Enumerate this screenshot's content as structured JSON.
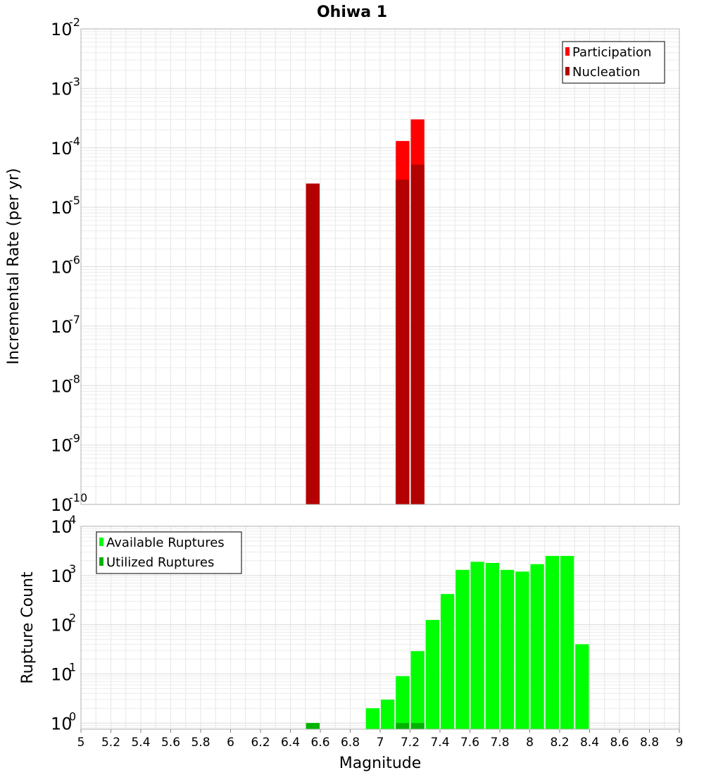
{
  "chart_data": [
    {
      "type": "bar",
      "title": "Ohiwa 1",
      "xlabel": "Magnitude",
      "ylabel": "Incremental Rate (per yr)",
      "yscale": "log",
      "xlim": [
        5,
        9
      ],
      "ylim": [
        1e-10,
        0.01
      ],
      "y_tick_bases": [
        "10",
        "10",
        "10",
        "10",
        "10",
        "10",
        "10",
        "10",
        "10"
      ],
      "y_tick_exponents": [
        "-10",
        "-9",
        "-8",
        "-7",
        "-6",
        "-5",
        "-4",
        "-3",
        "-2"
      ],
      "bin_width": 0.1,
      "grid": true,
      "legend_position": "top-right",
      "series": [
        {
          "name": "Participation",
          "color": "#ff0000",
          "x": [
            6.55,
            7.15,
            7.25
          ],
          "values": [
            2.5e-05,
            0.00013,
            0.0003
          ]
        },
        {
          "name": "Nucleation",
          "color": "#b30000",
          "x": [
            6.55,
            7.15,
            7.25
          ],
          "values": [
            2.5e-05,
            2.9e-05,
            5.2e-05
          ]
        }
      ]
    },
    {
      "type": "bar",
      "xlabel": "Magnitude",
      "ylabel": "Rupture Count",
      "yscale": "log",
      "xlim": [
        5,
        9
      ],
      "ylim": [
        0.75,
        10000
      ],
      "x_tick_labels": [
        "5",
        "5.2",
        "5.4",
        "5.6",
        "5.8",
        "6",
        "6.2",
        "6.4",
        "6.6",
        "6.8",
        "7",
        "7.2",
        "7.4",
        "7.6",
        "7.8",
        "8",
        "8.2",
        "8.4",
        "8.6",
        "8.8",
        "9"
      ],
      "y_tick_bases": [
        "10",
        "10",
        "10",
        "10",
        "10"
      ],
      "y_tick_exponents": [
        "0",
        "1",
        "2",
        "3",
        "4"
      ],
      "bin_width": 0.1,
      "grid": true,
      "legend_position": "top-left",
      "series": [
        {
          "name": "Available Ruptures",
          "color": "#00ff00",
          "x": [
            6.55,
            6.95,
            7.05,
            7.15,
            7.25,
            7.35,
            7.45,
            7.55,
            7.65,
            7.75,
            7.85,
            7.95,
            8.05,
            8.15,
            8.25,
            8.35
          ],
          "values": [
            1,
            2,
            3,
            9,
            29,
            125,
            420,
            1300,
            1900,
            1800,
            1300,
            1200,
            1700,
            2500,
            2500,
            40
          ]
        },
        {
          "name": "Utilized Ruptures",
          "color": "#00b300",
          "x": [
            6.55,
            7.15,
            7.25
          ],
          "values": [
            1,
            1,
            1
          ]
        }
      ]
    }
  ]
}
